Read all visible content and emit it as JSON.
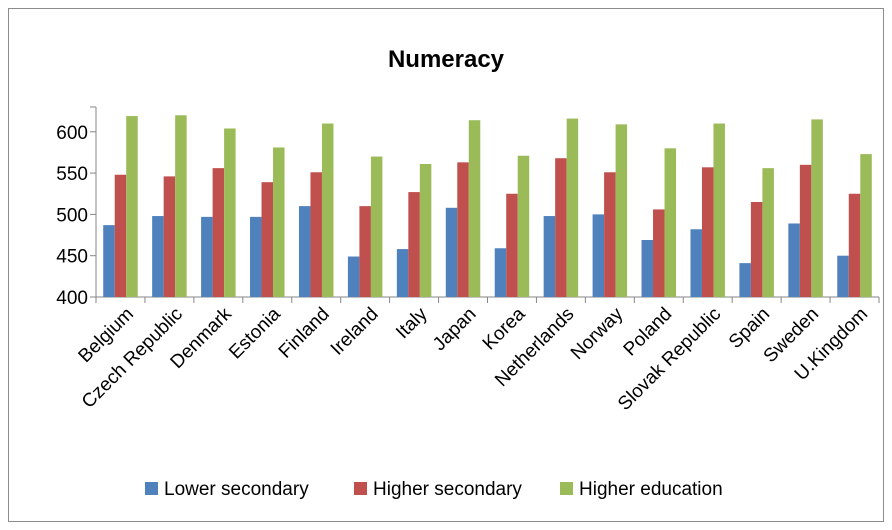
{
  "chart_data": {
    "type": "bar",
    "title": "Numeracy",
    "xlabel": "",
    "ylabel": "",
    "ylim": [
      400,
      630
    ],
    "yticks": [
      400,
      450,
      500,
      550,
      600
    ],
    "grid": false,
    "legend_position": "bottom",
    "categories": [
      "Belgium",
      "Czech Republic",
      "Denmark",
      "Estonia",
      "Finland",
      "Ireland",
      "Italy",
      "Japan",
      "Korea",
      "Netherlands",
      "Norway",
      "Poland",
      "Slovak Republic",
      "Spain",
      "Sweden",
      "U.Kingdom"
    ],
    "series": [
      {
        "name": "Lower secondary",
        "color": "#4f81bd",
        "values": [
          487,
          498,
          497,
          497,
          510,
          449,
          458,
          508,
          459,
          498,
          500,
          469,
          482,
          441,
          489,
          450
        ]
      },
      {
        "name": "Higher secondary",
        "color": "#c0504d",
        "values": [
          548,
          546,
          556,
          539,
          551,
          510,
          527,
          563,
          525,
          568,
          551,
          506,
          557,
          515,
          560,
          525
        ]
      },
      {
        "name": "Higher education",
        "color": "#9bbb59",
        "values": [
          619,
          620,
          604,
          581,
          610,
          570,
          561,
          614,
          571,
          616,
          609,
          580,
          610,
          556,
          615,
          573
        ]
      }
    ]
  }
}
